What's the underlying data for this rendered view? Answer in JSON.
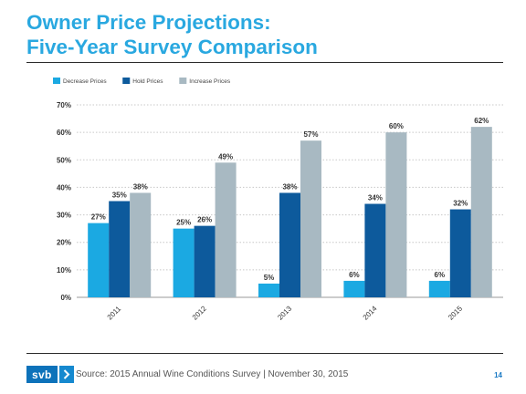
{
  "slide": {
    "title_line1": "Owner Price Projections:",
    "title_line2": "Five-Year Survey Comparison",
    "logo_text": "svb",
    "source": "Source: 2015 Annual Wine Conditions Survey | November 30, 2015",
    "page_number": "14"
  },
  "colors": {
    "title": "#29a8e0",
    "decrease": "#1ba9e2",
    "hold": "#0d5a9c",
    "increase": "#a8b9c2",
    "logo": "#0d72ba"
  },
  "chart_data": {
    "type": "bar",
    "categories": [
      "2011",
      "2012",
      "2013",
      "2014",
      "2015"
    ],
    "series": [
      {
        "name": "Decrease Prices",
        "values": [
          27,
          25,
          5,
          6,
          6
        ]
      },
      {
        "name": "Hold Prices",
        "values": [
          35,
          26,
          38,
          34,
          32
        ]
      },
      {
        "name": "Increase Prices",
        "values": [
          38,
          49,
          57,
          60,
          62
        ]
      }
    ],
    "ylim": [
      0,
      70
    ],
    "yticks": [
      0,
      10,
      20,
      30,
      40,
      50,
      60,
      70
    ],
    "ytick_labels": [
      "0%",
      "10%",
      "20%",
      "30%",
      "40%",
      "50%",
      "60%",
      "70%"
    ],
    "data_labels": [
      [
        "27%",
        "25%",
        "5%",
        "6%",
        "6%"
      ],
      [
        "35%",
        "26%",
        "38%",
        "34%",
        "32%"
      ],
      [
        "38%",
        "49%",
        "57%",
        "60%",
        "62%"
      ]
    ],
    "legend": "top-left",
    "grid": true
  }
}
